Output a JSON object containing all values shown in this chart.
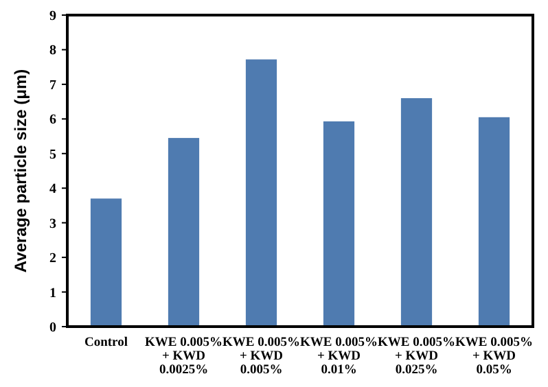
{
  "chart_data": {
    "type": "bar",
    "ylabel": "Average particle size (μm)",
    "categories": [
      "Control",
      "KWE 0.005%\n+ KWD\n0.0025%",
      "KWE 0.005%\n+ KWD\n0.005%",
      "KWE 0.005%\n+ KWD\n0.01%",
      "KWE 0.005%\n+ KWD\n0.025%",
      "KWE 0.005%\n+ KWD\n0.05%"
    ],
    "values": [
      3.7,
      5.45,
      7.72,
      5.93,
      6.6,
      6.05
    ],
    "color": "#4f7bb0",
    "ylim": [
      0,
      9
    ],
    "yticks": [
      0,
      1,
      2,
      3,
      4,
      5,
      6,
      7,
      8,
      9
    ],
    "grid": false
  }
}
